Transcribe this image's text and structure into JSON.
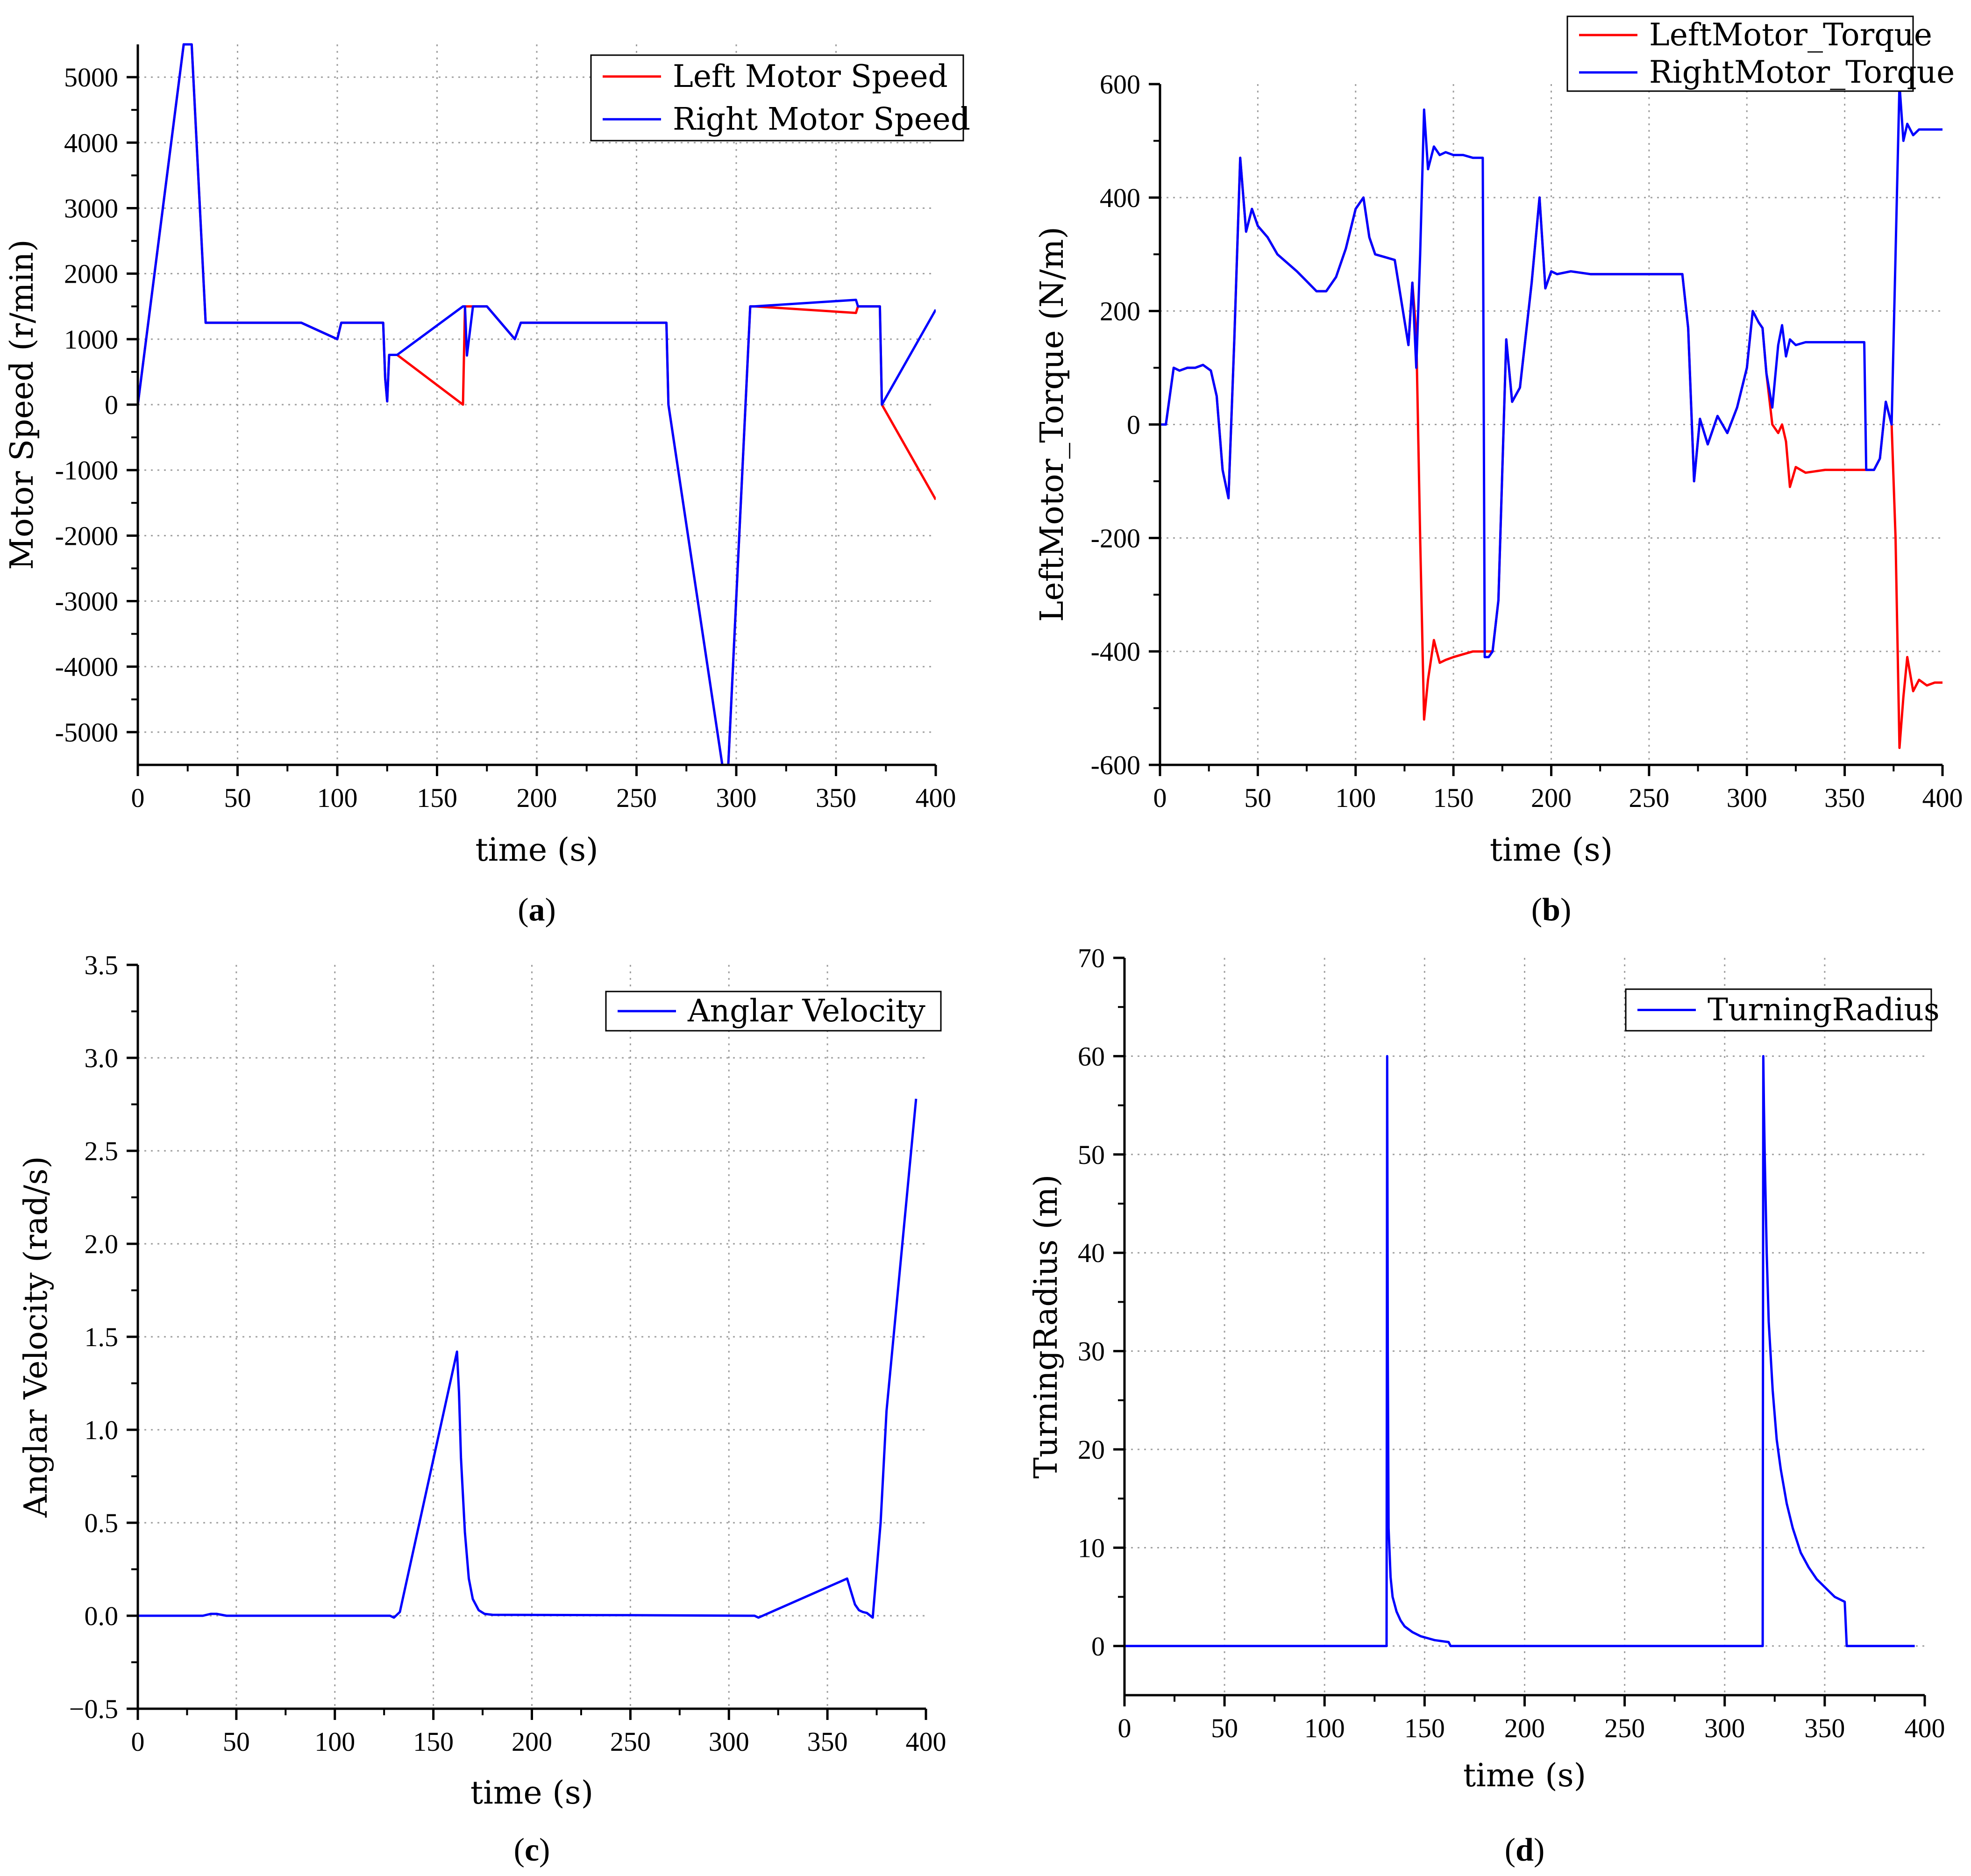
{
  "colors": {
    "left": "#ff0000",
    "right": "#0000ff",
    "grid": "#a0a0a0",
    "axis": "#000000"
  },
  "chart_data": [
    {
      "panel": "(a)",
      "panel_letter": "a",
      "type": "line",
      "xlabel": "time (s)",
      "ylabel": "Motor Speed (r/min)",
      "xlim": [
        0,
        400
      ],
      "ylim": [
        -5500,
        5500
      ],
      "xticks": [
        0,
        50,
        100,
        150,
        200,
        250,
        300,
        350,
        400
      ],
      "yticks": [
        -5000,
        -4000,
        -3000,
        -2000,
        -1000,
        0,
        1000,
        2000,
        3000,
        4000,
        5000
      ],
      "grid": true,
      "legend": "top-right",
      "series": [
        {
          "name": "Left Motor Speed",
          "color": "#ff0000",
          "x": [
            0,
            23,
            27,
            34,
            35,
            82,
            100,
            102,
            123,
            124,
            125,
            126,
            130,
            163,
            164,
            165,
            168,
            175,
            189,
            192,
            265,
            266,
            293,
            296,
            307,
            309,
            360,
            361,
            372,
            373,
            400
          ],
          "y": [
            0,
            5500,
            5500,
            1250,
            1250,
            1250,
            1000,
            1250,
            1250,
            400,
            50,
            760,
            760,
            0,
            1500,
            1500,
            1500,
            1500,
            1000,
            1250,
            1250,
            0,
            -5500,
            -5500,
            1500,
            1500,
            1400,
            1500,
            1500,
            0,
            -1450
          ]
        },
        {
          "name": "Right Motor Speed",
          "color": "#0000ff",
          "x": [
            0,
            23,
            27,
            34,
            35,
            82,
            100,
            102,
            123,
            124,
            125,
            126,
            130,
            163,
            164,
            165,
            168,
            175,
            189,
            192,
            265,
            266,
            293,
            296,
            307,
            309,
            360,
            361,
            372,
            373,
            400
          ],
          "y": [
            0,
            5500,
            5500,
            1250,
            1250,
            1250,
            1000,
            1250,
            1250,
            400,
            50,
            760,
            760,
            1500,
            1500,
            750,
            1500,
            1500,
            1000,
            1250,
            1250,
            0,
            -5500,
            -5500,
            1500,
            1500,
            1600,
            1500,
            1500,
            0,
            1450
          ]
        }
      ]
    },
    {
      "panel": "(b)",
      "panel_letter": "b",
      "type": "line",
      "xlabel": "time (s)",
      "ylabel": "LeftMotor_Torque (N/m)",
      "xlim": [
        0,
        400
      ],
      "ylim": [
        -600,
        600
      ],
      "xticks": [
        0,
        50,
        100,
        150,
        200,
        250,
        300,
        350,
        400
      ],
      "yticks": [
        -600,
        -400,
        -200,
        0,
        200,
        400,
        600
      ],
      "grid": true,
      "legend": "top-right",
      "series": [
        {
          "name": "LeftMotor_Torque",
          "color": "#ff0000",
          "x": [
            0,
            3,
            7,
            10,
            14,
            18,
            22,
            26,
            29,
            32,
            35,
            38,
            41,
            44,
            47,
            50,
            55,
            60,
            70,
            80,
            85,
            90,
            95,
            100,
            104,
            107,
            110,
            115,
            120,
            127,
            129,
            131,
            133,
            135,
            137,
            140,
            143,
            146,
            150,
            155,
            160,
            163,
            165,
            170,
            173,
            175,
            177,
            180,
            184,
            190,
            194,
            197,
            200,
            203,
            210,
            220,
            230,
            240,
            250,
            260,
            267,
            270,
            273,
            276,
            280,
            285,
            290,
            295,
            300,
            303,
            306,
            308,
            310,
            313,
            316,
            318,
            320,
            322,
            325,
            330,
            340,
            350,
            355,
            360,
            365,
            368,
            371,
            374,
            376,
            378,
            380,
            382,
            385,
            388,
            392,
            396,
            400
          ],
          "y": [
            0,
            0,
            100,
            95,
            100,
            100,
            105,
            95,
            50,
            -80,
            -130,
            150,
            470,
            340,
            380,
            350,
            330,
            300,
            270,
            235,
            235,
            260,
            310,
            380,
            400,
            330,
            300,
            295,
            290,
            140,
            250,
            160,
            -200,
            -520,
            -450,
            -380,
            -420,
            -415,
            -410,
            -405,
            -400,
            -400,
            -400,
            -400,
            -310,
            -80,
            150,
            40,
            65,
            250,
            400,
            240,
            270,
            265,
            270,
            265,
            265,
            265,
            265,
            265,
            265,
            170,
            -100,
            10,
            -35,
            15,
            -15,
            30,
            100,
            200,
            180,
            170,
            90,
            0,
            -15,
            0,
            -30,
            -110,
            -75,
            -85,
            -80,
            -80,
            -80,
            -80,
            -80,
            -60,
            40,
            0,
            -200,
            -570,
            -480,
            -410,
            -470,
            -450,
            -460,
            -455,
            -455
          ]
        },
        {
          "name": "RightMotor_Torque",
          "color": "#0000ff",
          "x": [
            0,
            3,
            7,
            10,
            14,
            18,
            22,
            26,
            29,
            32,
            35,
            38,
            41,
            44,
            47,
            50,
            55,
            60,
            70,
            80,
            85,
            90,
            95,
            100,
            104,
            107,
            110,
            115,
            120,
            127,
            129,
            131,
            133,
            135,
            137,
            140,
            143,
            146,
            150,
            155,
            160,
            163,
            165,
            166,
            168,
            170,
            173,
            175,
            177,
            180,
            184,
            190,
            194,
            197,
            200,
            203,
            210,
            220,
            230,
            240,
            250,
            260,
            267,
            270,
            273,
            276,
            280,
            285,
            290,
            295,
            300,
            303,
            306,
            308,
            310,
            313,
            316,
            318,
            320,
            322,
            325,
            330,
            340,
            350,
            355,
            360,
            361,
            363,
            365,
            368,
            371,
            374,
            376,
            378,
            380,
            382,
            385,
            388,
            392,
            396,
            400
          ],
          "y": [
            0,
            0,
            100,
            95,
            100,
            100,
            105,
            95,
            50,
            -80,
            -130,
            150,
            470,
            340,
            380,
            350,
            330,
            300,
            270,
            235,
            235,
            260,
            310,
            380,
            400,
            330,
            300,
            295,
            290,
            140,
            250,
            100,
            300,
            555,
            450,
            490,
            475,
            480,
            475,
            475,
            470,
            470,
            470,
            -410,
            -410,
            -400,
            -310,
            -80,
            150,
            40,
            65,
            250,
            400,
            240,
            270,
            265,
            270,
            265,
            265,
            265,
            265,
            265,
            265,
            170,
            -100,
            10,
            -35,
            15,
            -15,
            30,
            100,
            200,
            180,
            170,
            90,
            30,
            140,
            175,
            120,
            150,
            140,
            145,
            145,
            145,
            145,
            145,
            -80,
            -80,
            -80,
            -60,
            40,
            0,
            300,
            600,
            500,
            530,
            510,
            520,
            520,
            520,
            520
          ]
        }
      ]
    },
    {
      "panel": "(c)",
      "panel_letter": "c",
      "type": "line",
      "xlabel": "time (s)",
      "ylabel": "Anglar Velocity (rad/s)",
      "xlim": [
        0,
        400
      ],
      "ylim": [
        -0.5,
        3.5
      ],
      "xticks": [
        0,
        50,
        100,
        150,
        200,
        250,
        300,
        350,
        400
      ],
      "yticks": [
        -0.5,
        0.0,
        0.5,
        1.0,
        1.5,
        2.0,
        2.5,
        3.0,
        3.5
      ],
      "ytick_labels": [
        "−0.5",
        "0.0",
        "0.5",
        "1.0",
        "1.5",
        "2.0",
        "2.5",
        "3.0",
        "3.5"
      ],
      "grid": true,
      "legend": "top-right",
      "series": [
        {
          "name": "Anglar Velocity",
          "color": "#0000ff",
          "x": [
            0,
            33,
            37,
            40,
            45,
            125,
            128,
            130,
            133,
            162,
            163,
            164,
            166,
            168,
            170,
            173,
            176,
            180,
            250,
            310,
            313,
            315,
            360,
            362,
            364,
            366,
            368,
            370,
            373,
            377,
            380,
            395
          ],
          "y": [
            0,
            0,
            0.01,
            0.01,
            0,
            0,
            0,
            -0.01,
            0.02,
            1.42,
            1.2,
            0.85,
            0.45,
            0.2,
            0.09,
            0.03,
            0.01,
            0.005,
            0.003,
            0,
            0,
            -0.01,
            0.2,
            0.13,
            0.06,
            0.03,
            0.02,
            0.015,
            -0.01,
            0.5,
            1.1,
            2.78
          ]
        }
      ]
    },
    {
      "panel": "(d)",
      "panel_letter": "d",
      "type": "line",
      "xlabel": "time (s)",
      "ylabel": "TurningRadius (m)",
      "xlim": [
        0,
        400
      ],
      "ylim": [
        -5,
        70
      ],
      "xticks": [
        0,
        50,
        100,
        150,
        200,
        250,
        300,
        350,
        400
      ],
      "yticks": [
        0,
        10,
        20,
        30,
        40,
        50,
        60,
        70
      ],
      "grid": true,
      "legend": "top-right",
      "series": [
        {
          "name": "TurningRadius",
          "color": "#0000ff",
          "x": [
            0,
            131,
            131.3,
            131.6,
            132,
            133,
            134,
            136,
            138,
            140,
            144,
            148,
            155,
            162,
            163,
            200,
            319,
            319.3,
            319.6,
            320,
            321,
            322,
            324,
            326,
            328,
            331,
            334,
            338,
            342,
            346,
            350,
            355,
            360,
            361,
            395
          ],
          "y": [
            0,
            0,
            60,
            30,
            12,
            7,
            5,
            3.5,
            2.6,
            2,
            1.4,
            1,
            0.6,
            0.4,
            0,
            0,
            0,
            60,
            55,
            50,
            40,
            33,
            26,
            21,
            18,
            14.5,
            12,
            9.5,
            8,
            6.8,
            6,
            5,
            4.5,
            0,
            0
          ]
        }
      ]
    }
  ]
}
